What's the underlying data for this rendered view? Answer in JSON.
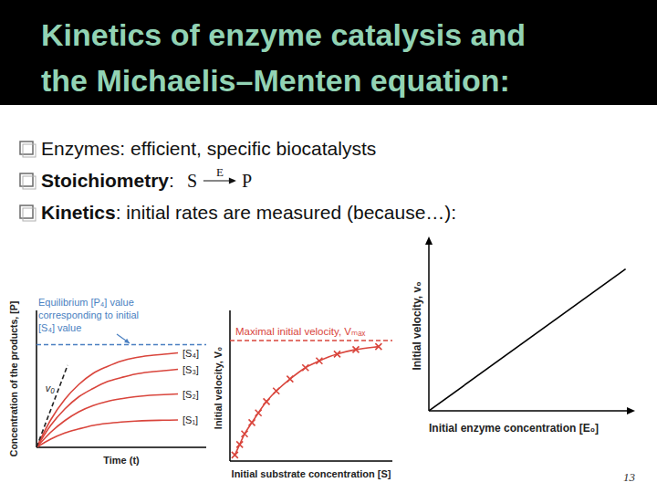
{
  "header": {
    "title": [
      "Kinetics of enzyme catalysis and",
      "the Michaelis–Menten equation:"
    ]
  },
  "bullets": [
    {
      "text": "Enzymes: efficient, specific biocatalysts"
    },
    {
      "lead": "Stoichiometry",
      "text": ":",
      "equation": {
        "reactant": "S",
        "catalyst": "E",
        "product": "P"
      }
    },
    {
      "lead": "Kinetics",
      "text": ": initial rates are measured (because…):"
    }
  ],
  "page_number": 13,
  "chart_data": [
    {
      "type": "line",
      "x_label": "Time (t)",
      "y_label": "Concentration of the products, [P]",
      "x": [
        0,
        1,
        2,
        3,
        4,
        5,
        6,
        7,
        8,
        9,
        10
      ],
      "xlim": [
        0,
        12
      ],
      "ylim": [
        0,
        10
      ],
      "tick_labels": false,
      "series": [
        {
          "name": "[S₄]",
          "color": "#d9453c",
          "values": [
            0,
            2.0,
            3.5,
            4.6,
            5.4,
            5.9,
            6.3,
            6.55,
            6.7,
            6.8,
            6.9
          ]
        },
        {
          "name": "[S₃]",
          "color": "#d9453c",
          "values": [
            0,
            1.6,
            2.8,
            3.7,
            4.3,
            4.8,
            5.1,
            5.35,
            5.5,
            5.6,
            5.7
          ]
        },
        {
          "name": "[S₂]",
          "color": "#d9453c",
          "values": [
            0,
            1.1,
            1.95,
            2.6,
            3.05,
            3.35,
            3.55,
            3.7,
            3.8,
            3.85,
            3.9
          ]
        },
        {
          "name": "[S₁]",
          "color": "#d9453c",
          "values": [
            0,
            0.6,
            1.05,
            1.35,
            1.6,
            1.75,
            1.85,
            1.92,
            1.96,
            1.98,
            2.0
          ]
        },
        {
          "name": "v₀",
          "color": "#222222",
          "line_style": "dashed",
          "x": [
            0,
            2.2
          ],
          "values": [
            0,
            6.0
          ]
        }
      ],
      "reference_line": {
        "value": 7.5,
        "color": "#4a7fc1",
        "label": [
          "Equilibrium [P₄] value",
          "corresponding to initial",
          "[S₄] value"
        ]
      }
    },
    {
      "type": "scatter",
      "x_label": "Initial substrate concentration [S]",
      "y_label": "Initial velocity, V₀",
      "x": [
        0.3,
        0.6,
        0.9,
        1.35,
        1.75,
        2.25,
        2.85,
        3.7,
        4.65,
        5.5,
        6.6,
        7.75,
        9.15
      ],
      "xlim": [
        0,
        10
      ],
      "ylim": [
        0,
        10
      ],
      "tick_labels": false,
      "series": [
        {
          "color": "#d9453c",
          "marker": "x",
          "line_style": "solid",
          "values": [
            0.4,
            1.1,
            1.8,
            2.55,
            3.2,
            3.95,
            4.65,
            5.45,
            6.2,
            6.65,
            7.1,
            7.4,
            7.6
          ]
        }
      ],
      "reference_line": {
        "value": 8.0,
        "color": "#d9453c",
        "label": [
          "Maximal initial velocity, Vₘₐₓ"
        ]
      }
    },
    {
      "type": "line",
      "x_label": "Initial enzyme concentration [E₀]",
      "y_label": "Initial velocity, v₀",
      "x": [
        0,
        9.8
      ],
      "xlim": [
        0,
        10
      ],
      "ylim": [
        0,
        10
      ],
      "tick_labels": false,
      "series": [
        {
          "color": "#000000",
          "values": [
            0,
            8.4
          ]
        }
      ]
    }
  ]
}
